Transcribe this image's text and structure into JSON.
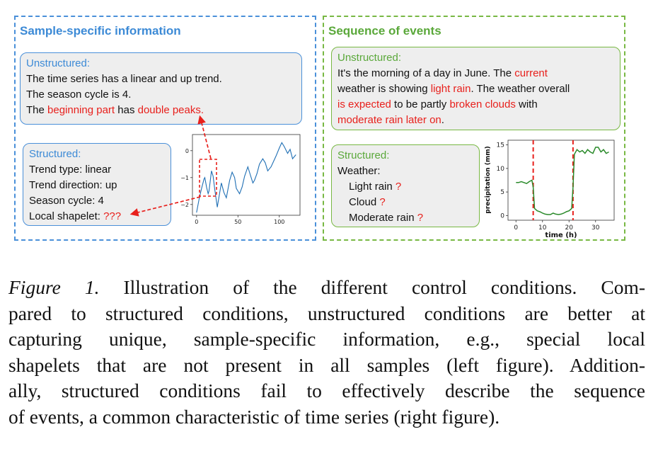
{
  "left_panel": {
    "title": "Sample-specific information",
    "unstructured": {
      "label": "Unstructured:",
      "line1": "The time series has a linear and up trend.",
      "line2": "The season cycle is 4.",
      "line3_a": "The ",
      "line3_red1": "beginning part",
      "line3_b": " has ",
      "line3_red2": "double peaks."
    },
    "structured": {
      "label": "Structured:",
      "trend_type": "Trend type: linear",
      "trend_direction": "Trend direction: up",
      "season_cycle": "Season cycle: 4",
      "shapelet_label": "Local shapelet: ",
      "shapelet_value": "???"
    },
    "plot": {
      "y_ticks": [
        "0",
        "−1",
        "−2"
      ],
      "x_ticks": [
        "0",
        "50",
        "100"
      ]
    }
  },
  "right_panel": {
    "title": "Sequence of events",
    "unstructured": {
      "label": "Unstructured:",
      "l1_a": "It's the morning of a day in June. The ",
      "l1_red": "current",
      "l2_a": "weather is showing ",
      "l2_red": "light rain",
      "l2_b": ". The weather overall",
      "l3_red1": "is expected",
      "l3_a": " to be partly ",
      "l3_red2": "broken clouds",
      "l3_b": " with",
      "l4_red": "moderate rain later on",
      "l4_b": "."
    },
    "structured": {
      "label": "Structured:",
      "weather": "Weather:",
      "items": [
        {
          "label": "Light rain ",
          "mark": "?"
        },
        {
          "label": "Cloud ",
          "mark": "?"
        },
        {
          "label": "Moderate rain ",
          "mark": "?"
        }
      ]
    },
    "plot": {
      "ylabel": "precipitation (mm)",
      "xlabel": "time (h)",
      "y_ticks": [
        "15",
        "10",
        "5",
        "0"
      ],
      "x_ticks": [
        "0",
        "10",
        "20",
        "30"
      ]
    }
  },
  "caption": {
    "fig_label": "Figure 1.",
    "line1_rest": " Illustration of the different control conditions. Com-",
    "line2": "pared to structured conditions, unstructured conditions are better at",
    "line3": "capturing unique, sample-specific information, e.g., special local",
    "line4": "shapelets that are not present in all samples (left figure). Addition-",
    "line5": "ally, structured conditions fail to effectively describe the sequence",
    "line6": "of events, a common characteristic of time series (right figure)."
  },
  "colors": {
    "left_accent": "#4a90d9",
    "right_accent": "#78b843",
    "highlight_red": "#e8201c",
    "series_blue": "#1f6fb4",
    "series_green": "#2a8a2a"
  },
  "chart_data": [
    {
      "type": "line",
      "title": "",
      "xlabel": "",
      "ylabel": "",
      "xlim": [
        -5,
        125
      ],
      "ylim": [
        -2.4,
        0.6
      ],
      "x_ticks": [
        0,
        50,
        100
      ],
      "y_ticks": [
        0,
        -1,
        -2
      ],
      "series": [
        {
          "x": [
            0,
            3,
            6,
            9,
            10,
            12,
            14,
            15,
            18,
            20,
            22,
            25,
            28,
            30,
            33,
            36,
            40,
            43,
            46,
            48,
            52,
            55,
            58,
            62,
            65,
            68,
            70,
            73,
            76,
            80,
            83,
            86,
            90,
            93,
            96,
            100,
            103,
            106,
            110,
            113,
            116,
            120
          ],
          "values": [
            -2.3,
            -1.8,
            -1.4,
            -1.05,
            -1.0,
            -1.35,
            -1.6,
            -1.5,
            -0.75,
            -0.95,
            -1.45,
            -2.1,
            -1.55,
            -1.2,
            -1.55,
            -1.75,
            -1.1,
            -0.8,
            -1.0,
            -1.4,
            -1.6,
            -1.35,
            -0.95,
            -0.6,
            -0.9,
            -1.2,
            -1.1,
            -0.85,
            -0.5,
            -0.3,
            -0.45,
            -0.75,
            -0.6,
            -0.4,
            -0.2,
            0.1,
            0.3,
            0.15,
            -0.1,
            0.05,
            -0.3,
            -0.15
          ]
        }
      ],
      "annotation": "dashed red box around the double-peak region near the start"
    },
    {
      "type": "line",
      "title": "",
      "xlabel": "time (h)",
      "ylabel": "precipitation (mm)",
      "xlim": [
        -3,
        37
      ],
      "ylim": [
        -1,
        16
      ],
      "x_ticks": [
        0,
        10,
        20,
        30
      ],
      "y_ticks": [
        0,
        5,
        10,
        15
      ],
      "vlines": [
        6.5,
        21.5
      ],
      "series": [
        {
          "x": [
            0,
            1,
            2,
            3,
            4,
            5,
            6,
            6.5,
            7,
            8,
            9,
            10,
            11,
            12,
            13,
            14,
            15,
            16,
            17,
            18,
            19,
            20,
            21,
            21.5,
            22,
            23,
            24,
            25,
            26,
            27,
            28,
            29,
            30,
            31,
            32,
            33,
            34,
            35
          ],
          "values": [
            7,
            7,
            7.2,
            7,
            6.8,
            7.2,
            7.5,
            6,
            1.5,
            1.0,
            0.8,
            0.5,
            0.3,
            0.2,
            0.2,
            0.5,
            0.3,
            0.2,
            0.3,
            0.5,
            0.8,
            1.0,
            1.5,
            6,
            13,
            14,
            13.5,
            13.8,
            13.2,
            14,
            13.5,
            13.2,
            14.5,
            14.5,
            13.5,
            14,
            13.2,
            13.5
          ]
        }
      ]
    }
  ]
}
